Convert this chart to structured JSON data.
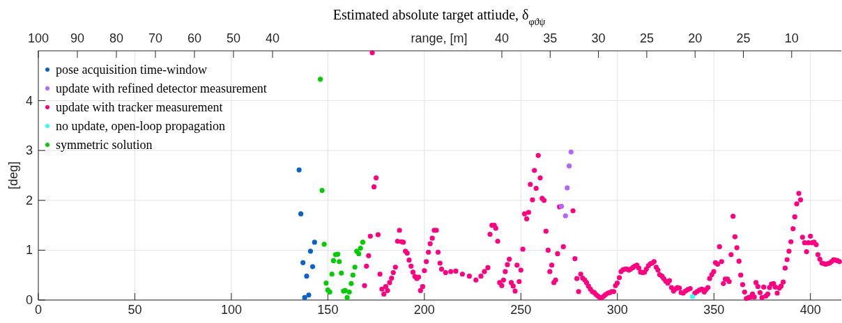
{
  "chart_data": {
    "type": "scatter",
    "title": "Estimated absolute target attiude, δ$_{φϑψ}$",
    "ylabel": "[deg]",
    "x2label": "range, [m]",
    "xlim": [
      0,
      416
    ],
    "xticks": [
      0,
      50,
      100,
      150,
      200,
      250,
      300,
      350,
      400
    ],
    "annotations": [
      "100",
      "90",
      "80",
      "70",
      "60",
      "50",
      "40",
      "40",
      "35",
      "30",
      "25",
      "20",
      "25",
      "10"
    ],
    "ylim": [
      0,
      5
    ],
    "yticks": [
      0,
      1,
      2,
      3,
      4
    ],
    "grid": true,
    "legend": "top left",
    "marker": "circle",
    "series": [
      {
        "name": "pose acquisition time-window",
        "color": "#0a64c8",
        "x": [
          135.1,
          136.0,
          137.1,
          138.0,
          139.0,
          140.1,
          141.0,
          142.1,
          143.1
        ],
        "values": [
          2.61,
          1.73,
          0.75,
          0.05,
          0.48,
          0.1,
          0.98,
          0.67,
          1.16
        ]
      },
      {
        "name": "update with refined detector measurement",
        "color": "#b266ff",
        "x": [
          271.0,
          273.1,
          274.0,
          275.0,
          276.0
        ],
        "values": [
          1.88,
          1.69,
          2.25,
          2.69,
          2.97
        ]
      },
      {
        "name": "update with tracker measurement",
        "color": "#ff0080",
        "x": [
          169.0,
          170.0,
          171.1,
          172.0,
          173.0,
          173.9,
          175.0,
          176.0,
          177.0,
          178.0,
          179.0,
          180.0,
          180.9,
          182.0,
          183.0,
          183.9,
          185.0,
          186.1,
          187.1,
          188.1,
          189.1,
          190.2,
          191.1,
          192.1,
          193.1,
          194.1,
          195.1,
          196.1,
          197.0,
          198.0,
          199.1,
          200.0,
          201.0,
          202.1,
          203.0,
          204.1,
          205.1,
          206.2,
          207.1,
          208.1,
          208.9,
          211.0,
          213.7,
          216.3,
          219.7,
          223.3,
          226.7,
          229.3,
          231.1,
          232.9,
          234.0,
          235.0,
          236.2,
          237.0,
          238.0,
          239.0,
          240.1,
          241.0,
          241.9,
          243.0,
          244.0,
          245.0,
          246.0,
          247.0,
          248.0,
          249.1,
          250.0,
          251.0,
          251.9,
          253.0,
          254.0,
          254.9,
          256.0,
          257.0,
          257.9,
          259.0,
          260.0,
          261.0,
          262.0,
          263.0,
          264.1,
          265.0,
          266.0,
          267.1,
          268.0,
          269.0,
          270.0,
          272.0,
          277.0,
          278.0,
          279.0,
          279.9,
          281.0,
          282.0,
          283.1,
          284.0,
          285.0,
          286.0,
          287.0,
          288.0,
          288.9,
          289.9,
          290.9,
          292.0,
          293.0,
          293.9,
          295.1,
          296.0,
          297.0,
          298.1,
          299.0,
          299.9,
          301.0,
          301.9,
          303.0,
          304.0,
          305.0,
          306.0,
          306.9,
          308.0,
          309.0,
          310.1,
          311.1,
          312.0,
          313.1,
          314.1,
          315.0,
          316.1,
          317.1,
          318.0,
          319.0,
          320.1,
          321.0,
          321.9,
          323.1,
          324.0,
          325.0,
          326.1,
          327.0,
          328.0,
          329.1,
          330.0,
          331.0,
          332.1,
          333.0,
          334.1,
          335.3,
          336.5,
          337.7,
          340.1,
          341.3,
          342.5,
          343.7,
          345.0,
          345.9,
          346.9,
          347.8,
          348.9,
          349.9,
          350.8,
          351.9,
          352.9,
          354.0,
          354.9,
          355.9,
          357.0,
          357.9,
          358.9,
          359.9,
          360.9,
          361.9,
          363.0,
          363.9,
          364.9,
          365.9,
          366.8,
          367.9,
          368.9,
          370.0,
          370.9,
          371.8,
          372.8,
          373.9,
          374.9,
          375.8,
          376.9,
          377.9,
          378.8,
          379.8,
          380.9,
          381.8,
          382.8,
          383.9,
          384.8,
          385.9,
          386.9,
          387.9,
          388.9,
          389.9,
          391.0,
          391.9,
          392.9,
          394.0,
          394.9,
          395.9,
          397.0,
          398.0,
          398.9,
          400.0,
          400.9,
          401.9,
          403.0,
          403.9,
          404.9,
          406.0,
          407.0,
          407.9,
          408.9,
          409.9,
          410.9,
          412.0,
          412.9,
          414.0,
          415.0
        ],
        "values": [
          0.29,
          0.68,
          0.89,
          1.28,
          4.96,
          2.27,
          2.45,
          1.31,
          0.52,
          0.22,
          0.12,
          0.27,
          0.19,
          0.35,
          0.44,
          0.55,
          0.66,
          1.18,
          1.4,
          1.17,
          1.16,
          0.98,
          0.94,
          0.8,
          0.68,
          0.56,
          0.47,
          0.43,
          0.46,
          0.19,
          0.27,
          0.59,
          0.77,
          0.96,
          1.13,
          1.24,
          1.4,
          1.4,
          0.96,
          0.74,
          0.62,
          0.55,
          0.57,
          0.58,
          0.52,
          0.48,
          0.4,
          0.48,
          0.57,
          0.65,
          1.32,
          1.5,
          1.5,
          1.44,
          1.18,
          0.35,
          0.29,
          0.4,
          0.57,
          0.71,
          0.82,
          0.35,
          0.28,
          0.18,
          0.7,
          0.37,
          0.6,
          1.02,
          1.73,
          1.63,
          1.76,
          2.32,
          2.01,
          2.6,
          2.24,
          2.9,
          2.45,
          2.04,
          2.0,
          1.38,
          1.0,
          0.57,
          0.7,
          0.35,
          0.4,
          0.93,
          1.87,
          1.07,
          1.79,
          0.83,
          0.43,
          0.17,
          0.52,
          0.44,
          0.4,
          0.35,
          0.28,
          0.22,
          0.17,
          0.15,
          0.11,
          0.08,
          0.05,
          0.05,
          0.08,
          0.11,
          0.14,
          0.15,
          0.17,
          0.17,
          0.29,
          0.34,
          0.45,
          0.57,
          0.61,
          0.62,
          0.62,
          0.6,
          0.62,
          0.65,
          0.68,
          0.7,
          0.64,
          0.56,
          0.55,
          0.56,
          0.62,
          0.69,
          0.73,
          0.74,
          0.77,
          0.66,
          0.6,
          0.51,
          0.48,
          0.43,
          0.38,
          0.34,
          0.39,
          0.25,
          0.18,
          0.22,
          0.25,
          0.24,
          0.15,
          0.14,
          0.18,
          0.21,
          0.23,
          0.14,
          0.17,
          0.2,
          0.22,
          0.16,
          0.21,
          0.25,
          0.43,
          0.51,
          0.57,
          0.75,
          0.72,
          1.07,
          0.77,
          0.33,
          0.42,
          0.42,
          0.37,
          0.91,
          1.68,
          1.27,
          1.05,
          0.78,
          0.5,
          0.31,
          0.16,
          0.03,
          0.05,
          0.06,
          0.12,
          0.06,
          0.35,
          0.27,
          0.15,
          0.05,
          0.26,
          0.08,
          0.12,
          0.25,
          0.32,
          0.33,
          0.26,
          0.14,
          0.24,
          0.28,
          0.36,
          0.64,
          0.81,
          0.98,
          1.17,
          1.43,
          1.67,
          1.93,
          2.14,
          2.01,
          1.26,
          1.15,
          0.97,
          1.15,
          1.28,
          1.15,
          1.16,
          1.11,
          0.91,
          0.82,
          0.74,
          0.73,
          0.72,
          0.73,
          0.74,
          0.77,
          0.81,
          0.8,
          0.79,
          0.77
        ]
      },
      {
        "name": "no update, open-loop propagation",
        "color": "#33ffff",
        "x": [
          338.9
        ],
        "values": [
          0.07
        ]
      },
      {
        "name": "symmetric solution",
        "color": "#00cc00",
        "x": [
          146.1,
          147.0,
          148.1,
          149.1,
          150.0,
          151.0,
          152.1,
          152.9,
          154.0,
          155.1,
          155.9,
          157.0,
          158.1,
          159.0,
          160.0,
          161.1,
          162.1,
          163.0,
          164.0,
          164.9,
          166.0,
          166.9,
          168.1
        ],
        "values": [
          4.43,
          2.2,
          1.12,
          0.34,
          0.2,
          0.16,
          0.52,
          0.79,
          0.91,
          0.92,
          0.77,
          0.54,
          0.18,
          0.19,
          0.05,
          0.16,
          0.33,
          0.5,
          0.66,
          0.98,
          0.93,
          1.04,
          1.16
        ]
      }
    ]
  }
}
